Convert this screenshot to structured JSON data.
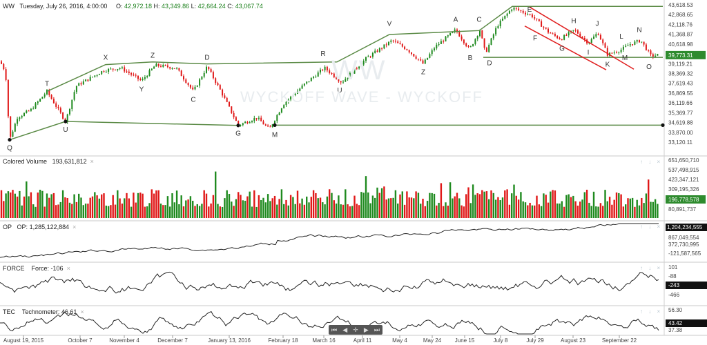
{
  "header": {
    "symbol": "WW",
    "datetime": "Tuesday, July 26, 2016, 4:00:00",
    "ohlc": [
      {
        "k": "O:",
        "v": "42,972.18"
      },
      {
        "k": "H:",
        "v": "43,349.86"
      },
      {
        "k": "L:",
        "v": "42,664.24"
      },
      {
        "k": "C:",
        "v": "43,067.74"
      }
    ]
  },
  "watermark": {
    "big": "WW",
    "text": "WYCKOFF WAVE - WYCKOFF"
  },
  "panes": {
    "volume": {
      "name": "Colored Volume",
      "value": "193,631,812"
    },
    "op": {
      "name": "OP",
      "label": "OP:",
      "value": "1,285,122,884"
    },
    "force": {
      "name": "FORCE",
      "label": "Force:",
      "value": "-106"
    },
    "tec": {
      "name": "TEC",
      "label": "Technometer:",
      "value": "46.61"
    }
  },
  "controls": {
    "close": "×",
    "arrows": "↑ ↓ ×",
    "nav": [
      "⏮",
      "◀",
      "✛",
      "▶",
      "⏭"
    ]
  },
  "chart_data": {
    "type": "candlestick",
    "x_ticks": [
      "August 19, 2015",
      "October 7",
      "November 4",
      "December 7",
      "January 13, 2016",
      "February 18",
      "March 16",
      "April 11",
      "May 4",
      "May 24",
      "June 15",
      "July 8",
      "July 29",
      "August 23",
      "September 22"
    ],
    "price_axis": {
      "ticks": [
        "43,618.53",
        "42,868.65",
        "42,118.76",
        "41,368.87",
        "40,618.98",
        "39,869.09",
        "39,119.21",
        "38,369.32",
        "37,619.43",
        "36,869.55",
        "36,119.66",
        "35,369.77",
        "34,619.88",
        "33,870.00",
        "33,120.11"
      ],
      "current": "39,773.31",
      "ylim": [
        33120.11,
        43618.53
      ]
    },
    "volume_axis": {
      "ticks": [
        "651,650,710",
        "537,498,915",
        "423,347,121",
        "309,195,326",
        "80,891,737"
      ],
      "current": "196,778,578"
    },
    "op_axis": {
      "ticks": [
        "867,049,554",
        "372,730,995",
        "-121,587,565"
      ],
      "current": "1,204,234,555"
    },
    "force_axis": {
      "ticks": [
        "101",
        "-88",
        "-466"
      ],
      "current": "-243"
    },
    "tec_axis": {
      "ticks": [
        "56.30",
        "37.38"
      ],
      "current": "43.42"
    },
    "price_path": [
      {
        "x": 0,
        "y": 39300
      },
      {
        "x": 8,
        "y": 38500
      },
      {
        "x": 14,
        "y": 33300
      },
      {
        "x": 25,
        "y": 35000
      },
      {
        "x": 45,
        "y": 35600
      },
      {
        "x": 68,
        "y": 37000
      },
      {
        "x": 95,
        "y": 34700
      },
      {
        "x": 110,
        "y": 37400
      },
      {
        "x": 150,
        "y": 38600
      },
      {
        "x": 175,
        "y": 38800
      },
      {
        "x": 205,
        "y": 37800
      },
      {
        "x": 225,
        "y": 39000
      },
      {
        "x": 255,
        "y": 38800
      },
      {
        "x": 280,
        "y": 37000
      },
      {
        "x": 300,
        "y": 38900
      },
      {
        "x": 320,
        "y": 37000
      },
      {
        "x": 345,
        "y": 34400
      },
      {
        "x": 372,
        "y": 35000
      },
      {
        "x": 390,
        "y": 34100
      },
      {
        "x": 410,
        "y": 36000
      },
      {
        "x": 440,
        "y": 37500
      },
      {
        "x": 470,
        "y": 38800
      },
      {
        "x": 495,
        "y": 37700
      },
      {
        "x": 530,
        "y": 39500
      },
      {
        "x": 568,
        "y": 40900
      },
      {
        "x": 590,
        "y": 40200
      },
      {
        "x": 613,
        "y": 39100
      },
      {
        "x": 630,
        "y": 40400
      },
      {
        "x": 660,
        "y": 41700
      },
      {
        "x": 680,
        "y": 40200
      },
      {
        "x": 695,
        "y": 41700
      },
      {
        "x": 703,
        "y": 39900
      },
      {
        "x": 720,
        "y": 42000
      },
      {
        "x": 742,
        "y": 43400
      },
      {
        "x": 770,
        "y": 42800
      },
      {
        "x": 795,
        "y": 41500
      },
      {
        "x": 812,
        "y": 41000
      },
      {
        "x": 832,
        "y": 41700
      },
      {
        "x": 852,
        "y": 40700
      },
      {
        "x": 866,
        "y": 41500
      },
      {
        "x": 880,
        "y": 39800
      },
      {
        "x": 900,
        "y": 40200
      },
      {
        "x": 912,
        "y": 40600
      },
      {
        "x": 928,
        "y": 40900
      },
      {
        "x": 943,
        "y": 39700
      },
      {
        "x": 955,
        "y": 39800
      }
    ],
    "wave_labels": [
      {
        "text": "Q",
        "x": 14,
        "y": 33300,
        "pos": "below"
      },
      {
        "text": "T",
        "x": 68,
        "y": 37000,
        "pos": "above"
      },
      {
        "text": "U",
        "x": 95,
        "y": 34700,
        "pos": "below"
      },
      {
        "text": "X",
        "x": 153,
        "y": 39000,
        "pos": "above"
      },
      {
        "text": "Y",
        "x": 205,
        "y": 37800,
        "pos": "below"
      },
      {
        "text": "Z",
        "x": 221,
        "y": 39150,
        "pos": "above"
      },
      {
        "text": "D",
        "x": 300,
        "y": 39000,
        "pos": "above"
      },
      {
        "text": "C",
        "x": 280,
        "y": 37000,
        "pos": "below"
      },
      {
        "text": "G",
        "x": 345,
        "y": 34400,
        "pos": "below"
      },
      {
        "text": "M",
        "x": 398,
        "y": 34300,
        "pos": "below"
      },
      {
        "text": "R",
        "x": 468,
        "y": 39300,
        "pos": "above"
      },
      {
        "text": "U",
        "x": 492,
        "y": 37700,
        "pos": "below"
      },
      {
        "text": "V",
        "x": 564,
        "y": 41600,
        "pos": "above"
      },
      {
        "text": "Z",
        "x": 613,
        "y": 39100,
        "pos": "below"
      },
      {
        "text": "A",
        "x": 660,
        "y": 41900,
        "pos": "above"
      },
      {
        "text": "B",
        "x": 681,
        "y": 40200,
        "pos": "below"
      },
      {
        "text": "C",
        "x": 694,
        "y": 41900,
        "pos": "above"
      },
      {
        "text": "D",
        "x": 709,
        "y": 39800,
        "pos": "below"
      },
      {
        "text": "E",
        "x": 759,
        "y": 43300,
        "pos": "right"
      },
      {
        "text": "F",
        "x": 775,
        "y": 41700,
        "pos": "below"
      },
      {
        "text": "H",
        "x": 831,
        "y": 41800,
        "pos": "above"
      },
      {
        "text": "G",
        "x": 814,
        "y": 40900,
        "pos": "below"
      },
      {
        "text": "J",
        "x": 865,
        "y": 41600,
        "pos": "above"
      },
      {
        "text": "I",
        "x": 852,
        "y": 40600,
        "pos": "below"
      },
      {
        "text": "K",
        "x": 880,
        "y": 39700,
        "pos": "below"
      },
      {
        "text": "L",
        "x": 900,
        "y": 40600,
        "pos": "above"
      },
      {
        "text": "M",
        "x": 905,
        "y": 40200,
        "pos": "below"
      },
      {
        "text": "N",
        "x": 926,
        "y": 41100,
        "pos": "above"
      },
      {
        "text": "O",
        "x": 940,
        "y": 39500,
        "pos": "below"
      }
    ],
    "trend_lines": [
      {
        "color": "#5a8a45",
        "points": [
          {
            "x": 14,
            "y": 33300
          },
          {
            "x": 95,
            "y": 34700
          },
          {
            "x": 345,
            "y": 34400
          }
        ]
      },
      {
        "color": "#5a8a45",
        "points": [
          {
            "x": 398,
            "y": 34420
          },
          {
            "x": 960,
            "y": 34420
          }
        ]
      },
      {
        "color": "#5a8a45",
        "points": [
          {
            "x": 68,
            "y": 37000
          },
          {
            "x": 153,
            "y": 39050
          },
          {
            "x": 221,
            "y": 39250
          },
          {
            "x": 300,
            "y": 39100
          },
          {
            "x": 488,
            "y": 39250
          },
          {
            "x": 564,
            "y": 41350
          },
          {
            "x": 694,
            "y": 41650
          },
          {
            "x": 742,
            "y": 43500
          },
          {
            "x": 960,
            "y": 43500
          }
        ]
      },
      {
        "color": "#5a8a45",
        "points": [
          {
            "x": 700,
            "y": 39600
          },
          {
            "x": 960,
            "y": 39600
          }
        ]
      },
      {
        "color": "#e02020",
        "points": [
          {
            "x": 767,
            "y": 43450
          },
          {
            "x": 918,
            "y": 38700
          }
        ]
      },
      {
        "color": "#e02020",
        "points": [
          {
            "x": 760,
            "y": 42000
          },
          {
            "x": 878,
            "y": 38650
          }
        ]
      }
    ],
    "pivot_markers": [
      {
        "x": 14,
        "y": 33300
      },
      {
        "x": 95,
        "y": 34700
      },
      {
        "x": 345,
        "y": 34400
      },
      {
        "x": 398,
        "y": 34420
      },
      {
        "x": 960,
        "y": 34420
      }
    ]
  }
}
